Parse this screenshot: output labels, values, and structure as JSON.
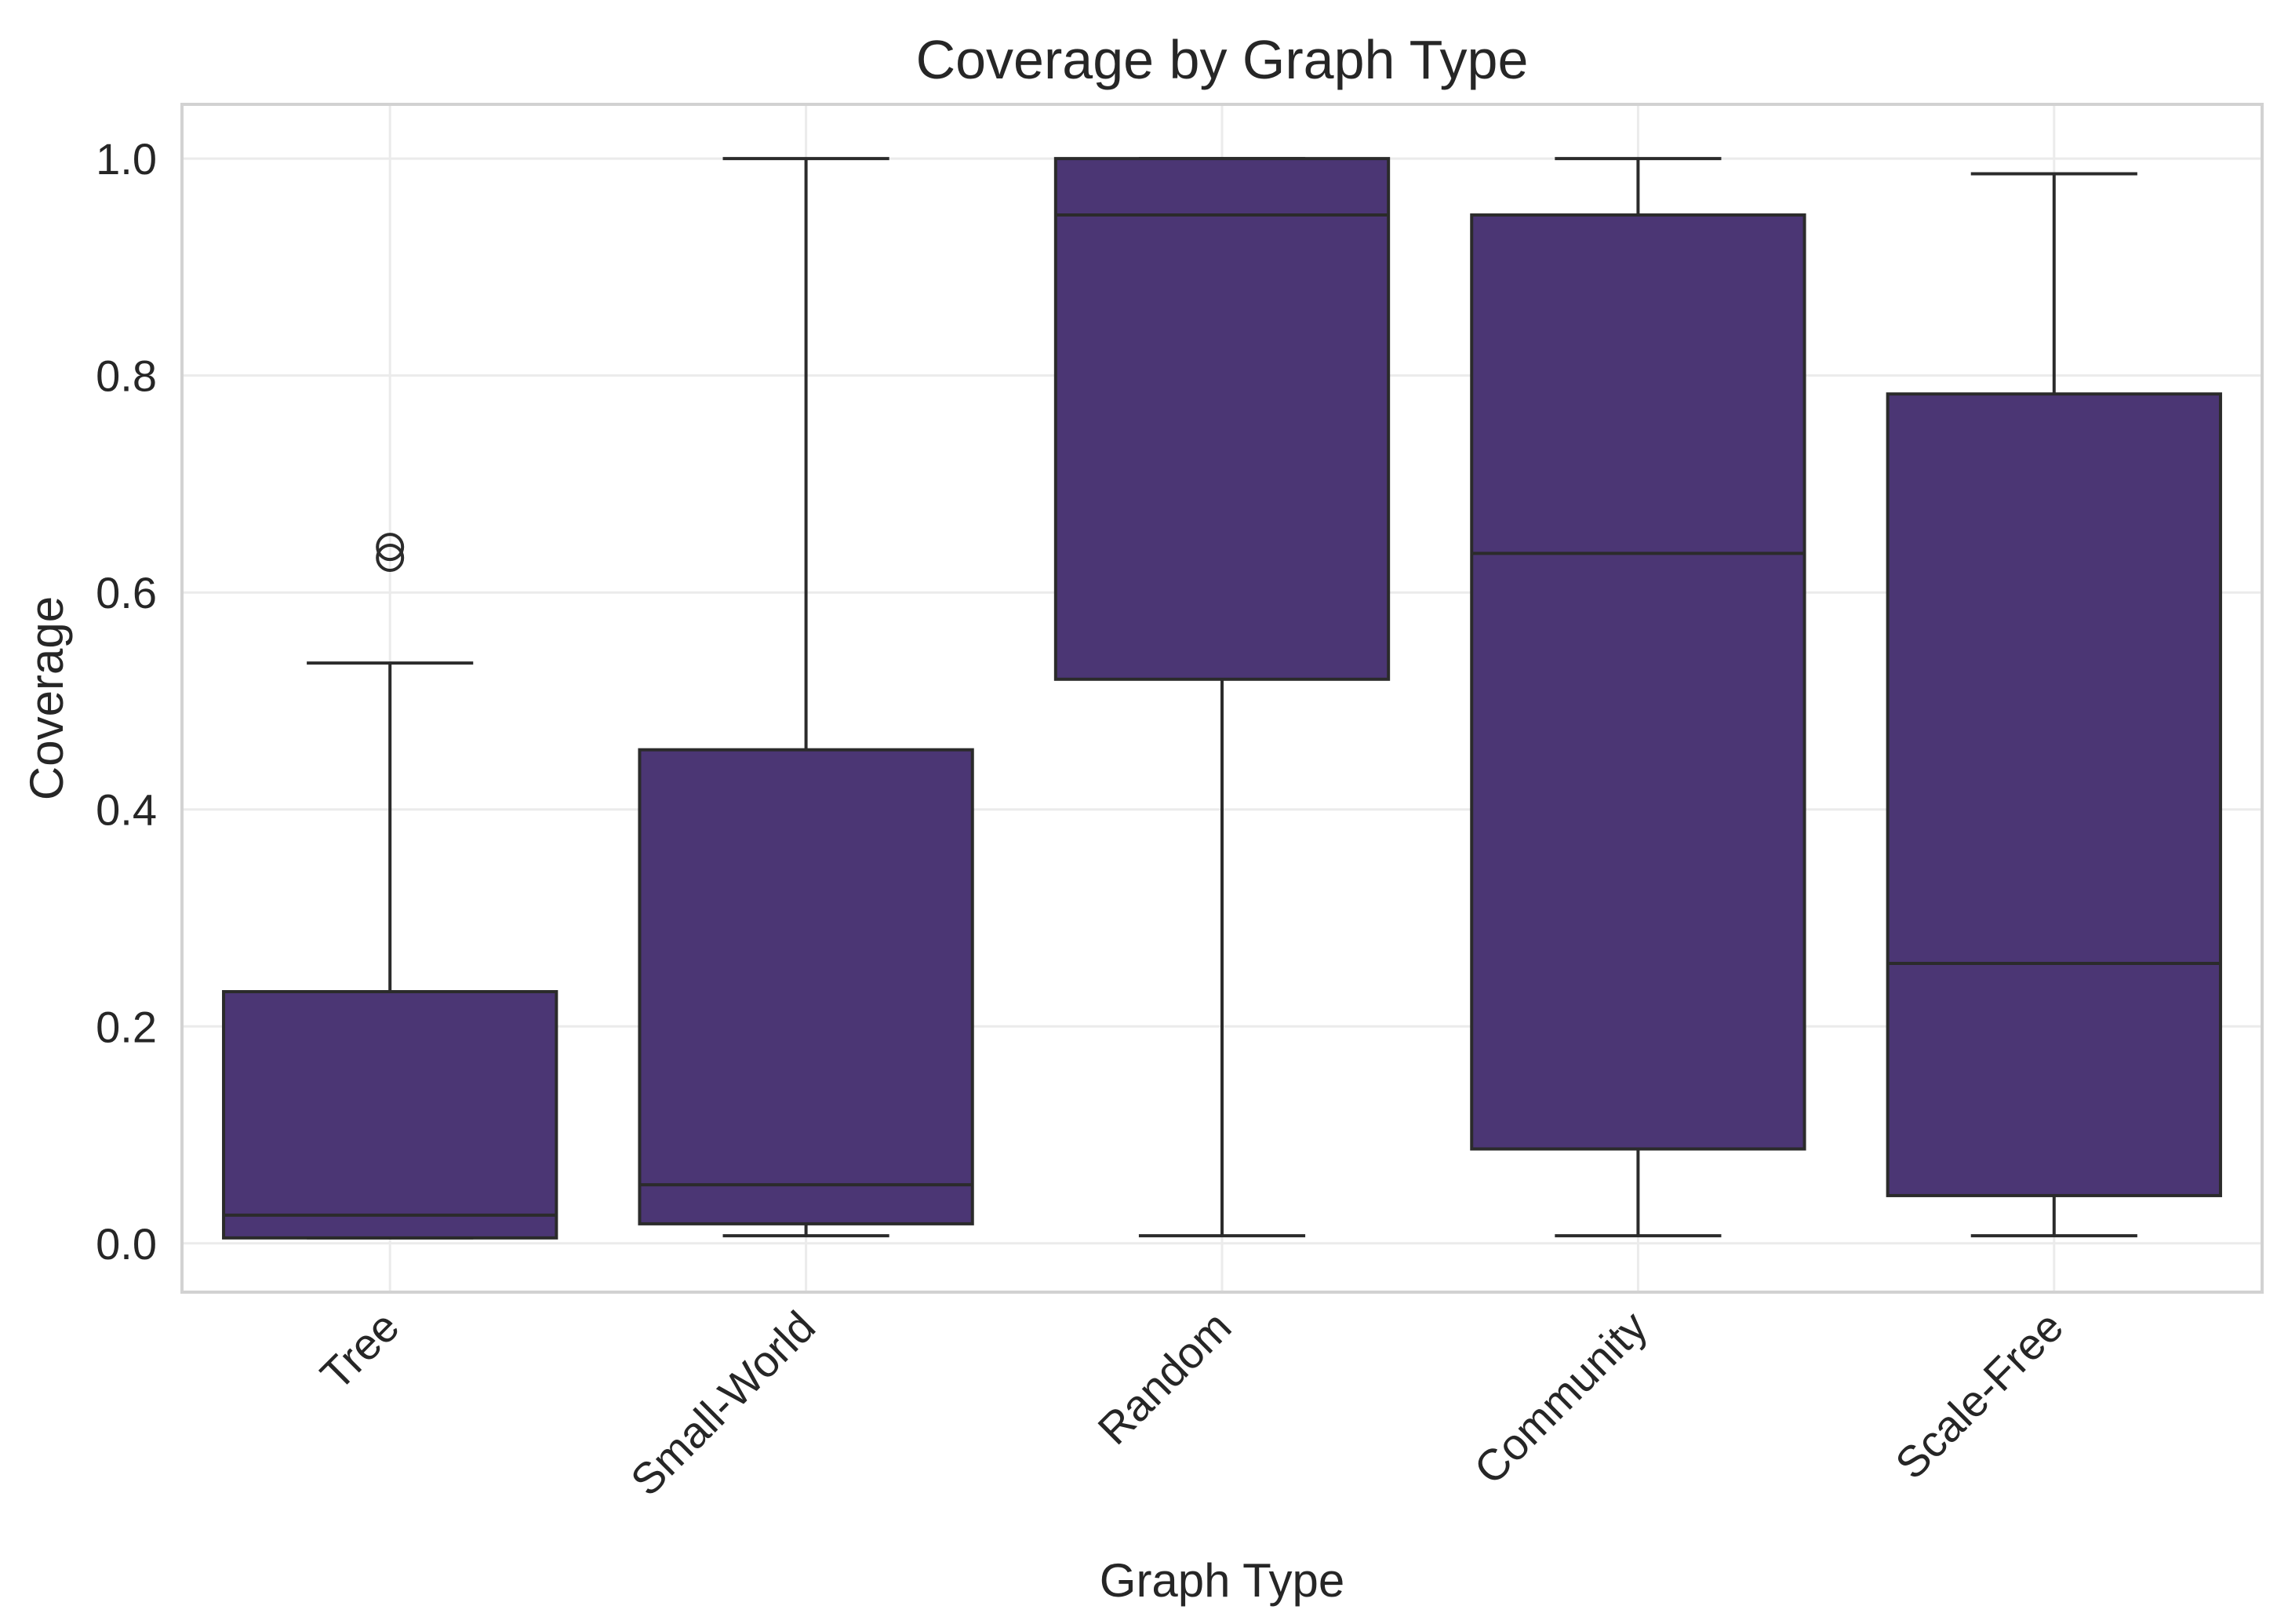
{
  "chart_data": {
    "type": "box",
    "title": "Coverage by Graph Type",
    "xlabel": "Graph Type",
    "ylabel": "Coverage",
    "ylim": [
      -0.045,
      1.05
    ],
    "yticks": [
      0.0,
      0.2,
      0.4,
      0.6,
      0.8,
      1.0
    ],
    "ytick_labels": [
      "0.0",
      "0.2",
      "0.4",
      "0.6",
      "0.8",
      "1.0"
    ],
    "grid": true,
    "box_color": "#4b3674",
    "categories": [
      "Tree",
      "Small-World",
      "Random",
      "Community",
      "Scale-Free"
    ],
    "boxes": [
      {
        "category": "Tree",
        "whisker_low": 0.005,
        "q1": 0.005,
        "median": 0.026,
        "q3": 0.232,
        "whisker_high": 0.535,
        "outliers": [
          0.632,
          0.642
        ]
      },
      {
        "category": "Small-World",
        "whisker_low": 0.007,
        "q1": 0.018,
        "median": 0.054,
        "q3": 0.455,
        "whisker_high": 1.0,
        "outliers": []
      },
      {
        "category": "Random",
        "whisker_low": 0.007,
        "q1": 0.52,
        "median": 0.948,
        "q3": 1.0,
        "whisker_high": 1.0,
        "outliers": []
      },
      {
        "category": "Community",
        "whisker_low": 0.007,
        "q1": 0.087,
        "median": 0.636,
        "q3": 0.948,
        "whisker_high": 1.0,
        "outliers": []
      },
      {
        "category": "Scale-Free",
        "whisker_low": 0.007,
        "q1": 0.044,
        "median": 0.258,
        "q3": 0.783,
        "whisker_high": 0.986,
        "outliers": []
      }
    ]
  }
}
